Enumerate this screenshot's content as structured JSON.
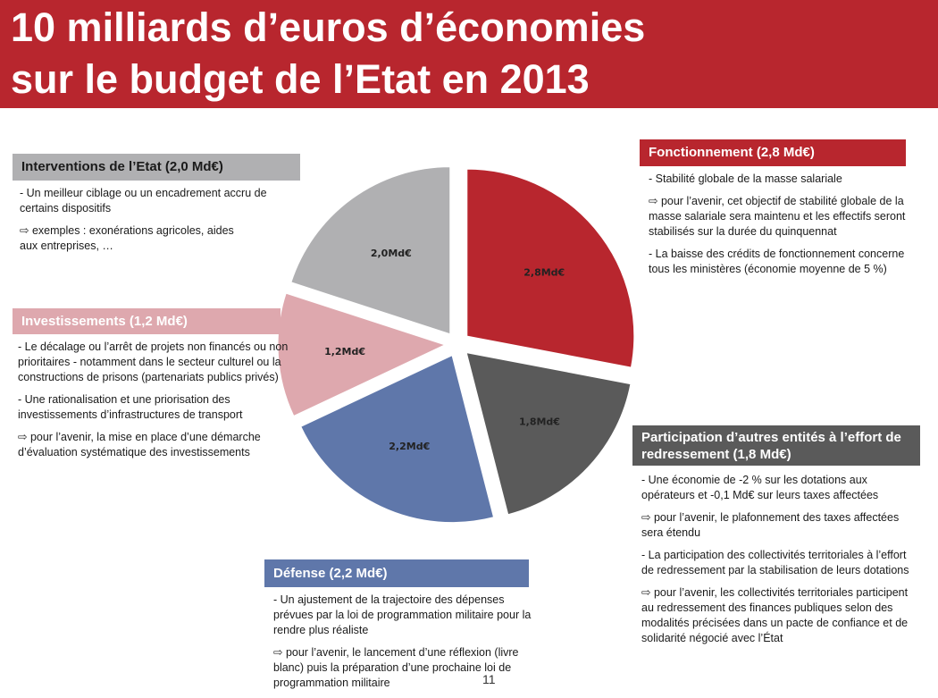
{
  "header": {
    "title_line1": "10 milliards d’euros d’économies",
    "title_line2": "sur le budget de l’Etat en 2013"
  },
  "colors": {
    "banner": "#b8262e",
    "fonctionnement": "#b8262e",
    "participation": "#5a5a5a",
    "defense": "#5f77aa",
    "investissements": "#dea8ae",
    "interventions": "#b0b0b2"
  },
  "chart_data": {
    "type": "pie",
    "unit": "Md€",
    "slices": [
      {
        "name": "Fonctionnement",
        "value": 2.8,
        "label": "2,8Md€",
        "color": "#b8262e"
      },
      {
        "name": "Participation d’autres entités",
        "value": 1.8,
        "label": "1,8Md€",
        "color": "#5a5a5a"
      },
      {
        "name": "Défense",
        "value": 2.2,
        "label": "2,2Md€",
        "color": "#5f77aa"
      },
      {
        "name": "Investissements",
        "value": 1.2,
        "label": "1,2Md€",
        "color": "#dea8ae"
      },
      {
        "name": "Interventions de l’Etat",
        "value": 2.0,
        "label": "2,0Md€",
        "color": "#b0b0b2"
      }
    ]
  },
  "boxes": {
    "interventions": {
      "title": "Interventions de l’Etat (2,0 Md€)",
      "p1": "- Un meilleur ciblage ou un encadrement accru de certains dispositifs",
      "p2": "⇨ exemples : exonérations agricoles, aides aux entreprises, …"
    },
    "investissements": {
      "title": "Investissements (1,2 Md€)",
      "p1": "- Le décalage ou l’arrêt de projets non financés ou non prioritaires - notamment dans le secteur culturel ou la constructions de prisons (partenariats publics privés)",
      "p2": "- Une rationalisation et une priorisation des investissements d’infrastructures de transport",
      "p3": "⇨ pour l’avenir, la mise en place d’une démarche d’évaluation systématique des investissements"
    },
    "fonctionnement": {
      "title": "Fonctionnement (2,8 Md€)",
      "p1": "- Stabilité globale de la masse salariale",
      "p2": "⇨ pour l’avenir, cet objectif de stabilité globale de la masse salariale sera maintenu et les effectifs seront stabilisés sur la durée du quinquennat",
      "p3": "- La baisse des crédits de fonctionnement concerne tous les ministères (économie moyenne de 5 %)"
    },
    "participation": {
      "title": "Participation d’autres entités à l’effort de redressement (1,8 Md€)",
      "p1": "- Une économie de -2 % sur les dotations aux opérateurs et -0,1 Md€ sur leurs taxes affectées",
      "p2": "⇨ pour l’avenir, le plafonnement des taxes affectées sera étendu",
      "p3": "- La participation des collectivités territoriales à l’effort de redressement par la stabilisation de leurs dotations",
      "p4": "⇨ pour l’avenir, les collectivités territoriales participent au redressement des finances publiques selon des modalités précisées dans un pacte de confiance et de solidarité négocié avec l’État"
    },
    "defense": {
      "title": "Défense (2,2 Md€)",
      "p1": "- Un ajustement de la trajectoire des dépenses prévues par la loi de programmation militaire pour la rendre plus réaliste",
      "p2": "⇨ pour l’avenir, le lancement d’une réflexion (livre blanc) puis la préparation d’une prochaine loi de programmation militaire"
    }
  },
  "page_number": "11"
}
